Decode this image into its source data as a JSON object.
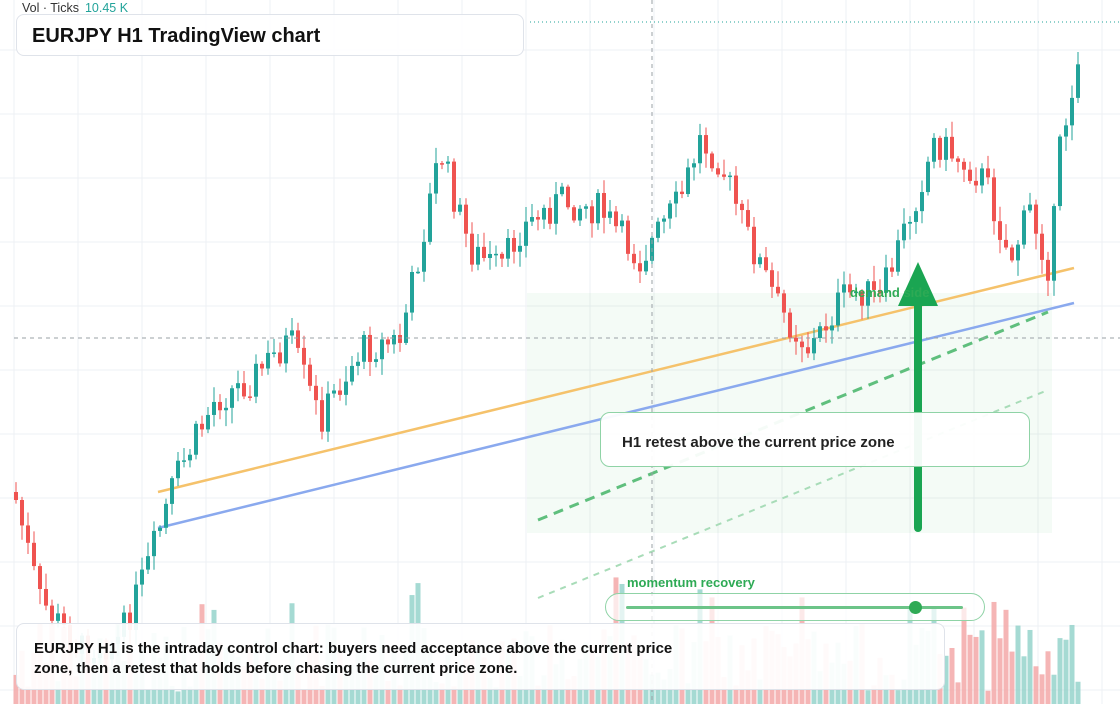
{
  "header": {
    "vol_label": "Vol · Ticks",
    "vol_value": "10.45 K",
    "title": "EURJPY H1 TradingView chart"
  },
  "annotations": {
    "retest_callout": "H1 retest above the current price zone",
    "zone_label": "demand side",
    "momentum_label": "momentum recovery",
    "momentum_level": 0.86
  },
  "summary": {
    "text": "EURJPY H1 is the intraday control chart: buyers need acceptance above the current price zone, then a retest that holds before chasing the current price zone."
  },
  "colors": {
    "up": "#22a39a",
    "down": "#ef5350",
    "up_volume": "#8fd1c8",
    "down_volume": "#f2a3a3",
    "orange_trend": "#f5c26b",
    "blue_trend": "#8aa9ee",
    "accent_green": "#2eaa55"
  }
}
